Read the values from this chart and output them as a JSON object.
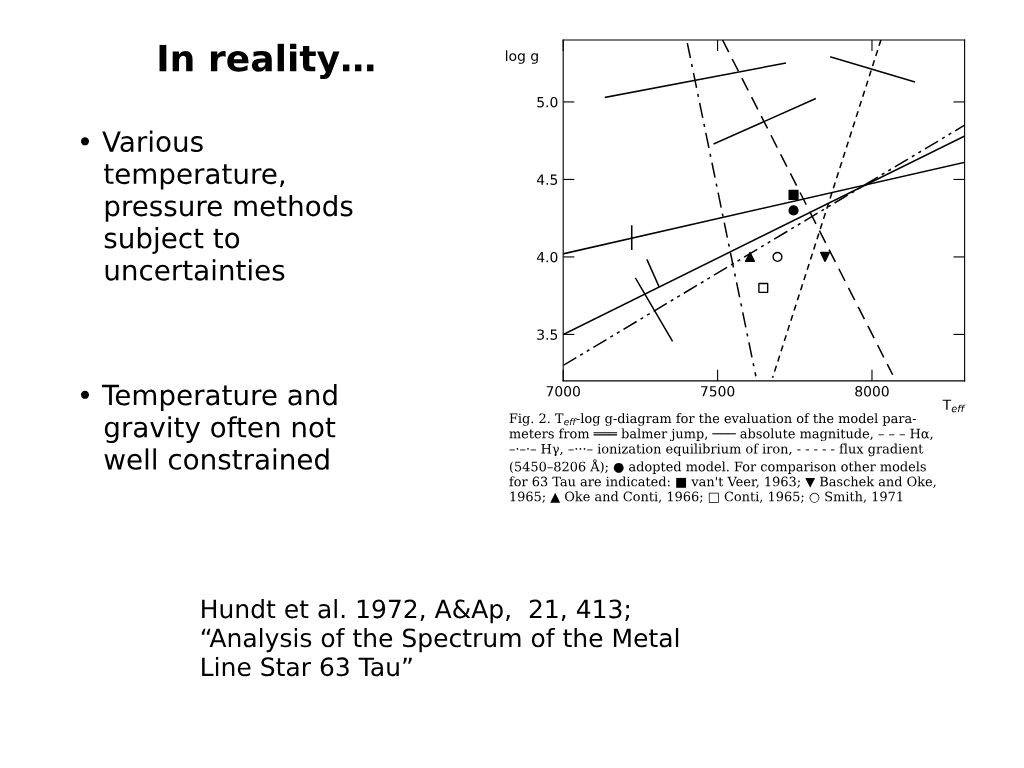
{
  "chart_data": {
    "type": "line",
    "title": "In reality…",
    "xlabel": "T$_{eff}$",
    "ylabel": "log g",
    "xlim": [
      7000,
      8300
    ],
    "ylim": [
      3.2,
      5.4
    ],
    "xticks": [
      7000,
      7500,
      8000
    ],
    "yticks": [
      3.5,
      {
        "value": 4.0,
        "label": "4.0"
      },
      4.5,
      {
        "value": 5.0,
        "label": "5.0"
      }
    ],
    "grid": false,
    "legend": false,
    "series": [
      {
        "color": "#000000",
        "line_style": "solid",
        "x": [
          7000,
          8300
        ],
        "values": [
          3.5,
          4.78
        ]
      },
      {
        "color": "#000000",
        "line_style": "solid",
        "x": [
          7000,
          8300
        ],
        "values": [
          4.02,
          4.61
        ]
      },
      {
        "color": "#000000",
        "line_style": "dashed",
        "x": [
          7516,
          8067
        ],
        "values": [
          5.4,
          3.24
        ]
      },
      {
        "color": "#000000",
        "line_style": "dashdot",
        "x": [
          7402,
          7624
        ],
        "values": [
          5.38,
          3.23
        ]
      },
      {
        "color": "#000000",
        "line_style": "dashdotdot",
        "x": [
          7000,
          8300
        ],
        "values": [
          3.3,
          4.85
        ]
      },
      {
        "color": "#000000",
        "line_style": "dotted",
        "x": [
          8029,
          7678
        ],
        "values": [
          5.4,
          3.22
        ]
      },
      {
        "color": "#000000",
        "line_style": "solid",
        "x": [
          7137,
          7719
        ],
        "values": [
          5.03,
          5.25
        ]
      },
      {
        "color": "#000000",
        "line_style": "solid",
        "x": [
          7489,
          7816
        ],
        "values": [
          4.73,
          5.02
        ]
      },
      {
        "color": "#000000",
        "line_style": "solid",
        "x": [
          7867,
          8137
        ],
        "values": [
          5.29,
          5.13
        ]
      },
      {
        "color": "#000000",
        "line_style": "solid",
        "x": [
          7222,
          7222
        ],
        "values": [
          4.05,
          4.2
        ]
      },
      {
        "color": "#000000",
        "line_style": "solid",
        "x": [
          7235,
          7353
        ],
        "values": [
          3.86,
          3.46
        ]
      },
      {
        "color": "#000000",
        "line_style": "solid",
        "x": [
          7310,
          7272
        ],
        "values": [
          3.81,
          3.98
        ]
      },
      {
        "type": "scatter",
        "color": "#000000",
        "marker": "square",
        "x": [
          7746
        ],
        "values": [
          4.4
        ]
      },
      {
        "type": "scatter",
        "color": "#000000",
        "marker": "circle",
        "x": [
          7746
        ],
        "values": [
          4.3
        ]
      },
      {
        "type": "scatter",
        "color": "#000000",
        "marker": "triangle",
        "x": [
          7605
        ],
        "values": [
          4.0
        ]
      },
      {
        "type": "scatter",
        "color": "#ffffff",
        "marker": "circle",
        "x": [
          7694
        ],
        "values": [
          4.0
        ]
      },
      {
        "type": "scatter",
        "color": "#000000",
        "marker": "triangle_down",
        "x": [
          7848
        ],
        "values": [
          4.0
        ]
      },
      {
        "type": "scatter",
        "color": "#ffffff",
        "marker": "square",
        "x": [
          7648
        ],
        "values": [
          3.8
        ]
      }
    ],
    "annotations": [
      "• Various\n   temperature,\n   pressure methods\n   subject to\n   uncertainties",
      "• Temperature and\n   gravity often not\n   well constrained",
      "Fig. 2. T$_{eff}$-log g-diagram for the evaluation of the model para-\nmeters from ═══ balmer jump, ─── absolute magnitude, – – – Hα,\n–·–·– Hγ, –···– ionization equilibrium of iron, - - - - - flux gradient\n(5450–8206 Å); ● adopted model. For comparison other models\nfor 63 Tau are indicated: ■ van't Veer, 1963; ▼ Baschek and Oke,\n1965; ▲ Oke and Conti, 1966; □ Conti, 1965; ○ Smith, 1971",
      "Hundt et al. 1972, A&Ap,  21, 413;\n“Analysis of the Spectrum of the Metal\nLine Star 63 Tau”"
    ]
  }
}
